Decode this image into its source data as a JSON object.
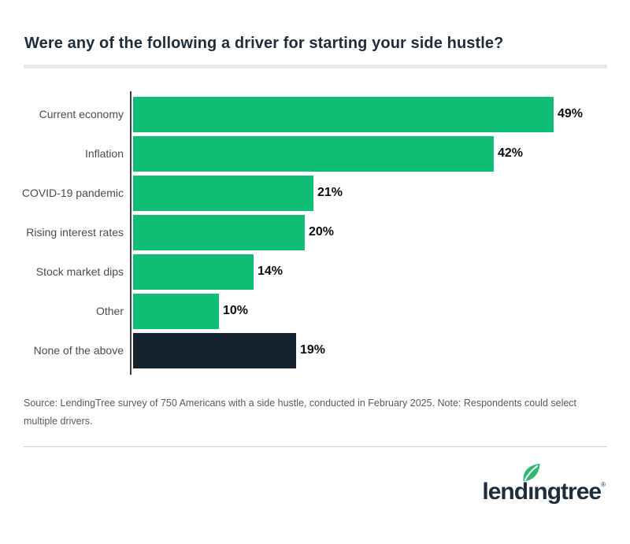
{
  "title": "Were any of the following a driver for starting your side hustle?",
  "colors": {
    "accent_green": "#0fbe75",
    "dark_navy": "#152331",
    "title_navy": "#1d2d3b",
    "axis_gray": "#3d3d3d",
    "label_gray": "#4b4b4b",
    "value_black": "#0d0d0d",
    "source_gray": "#58595b",
    "header_divider": "#e8e8e8",
    "footer_divider": "#cfcfcf",
    "leaf_green": "#2eb96f"
  },
  "chart_data": {
    "type": "bar",
    "orientation": "horizontal",
    "title": "Were any of the following a driver for starting your side hustle?",
    "categories": [
      "Current economy",
      "Inflation",
      "COVID-19 pandemic",
      "Rising interest rates",
      "Stock market dips",
      "Other",
      "None of the above"
    ],
    "values": [
      49,
      42,
      21,
      20,
      14,
      10,
      19
    ],
    "value_labels": [
      "49%",
      "42%",
      "21%",
      "20%",
      "14%",
      "10%",
      "19%"
    ],
    "bar_colors": [
      "#0fbe75",
      "#0fbe75",
      "#0fbe75",
      "#0fbe75",
      "#0fbe75",
      "#0fbe75",
      "#152331"
    ],
    "xlim": [
      0,
      52
    ],
    "grid": false,
    "legend": false,
    "value_label_position": "outside-end"
  },
  "footer": {
    "source_note": "Source: LendingTree survey of 750 Americans with a side hustle, conducted in February 2025. Note: Respondents could select multiple drivers.",
    "logo": {
      "brand": "lendingtree",
      "registered_mark": "®",
      "wordmark_pre": "lend",
      "wordmark_i": "ı",
      "wordmark_post": "ngtree"
    }
  }
}
